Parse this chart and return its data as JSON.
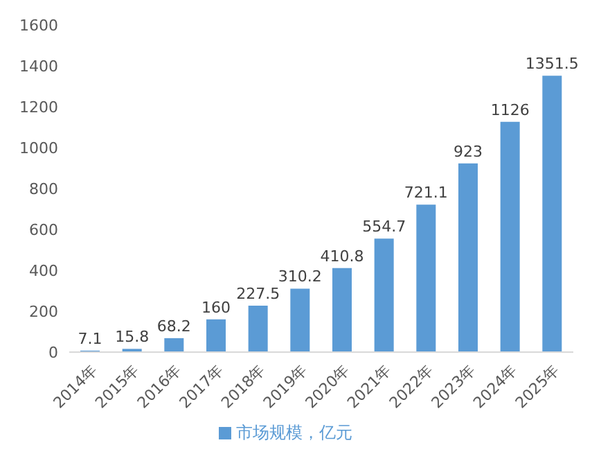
{
  "chart_data": {
    "type": "bar",
    "categories": [
      "2014年",
      "2015年",
      "2016年",
      "2017年",
      "2018年",
      "2019年",
      "2020年",
      "2021年",
      "2022年",
      "2023年",
      "2024年",
      "2025年"
    ],
    "series": [
      {
        "name": "市场规模，亿元",
        "color": "#5b9bd5",
        "values": [
          7.1,
          15.8,
          68.2,
          160,
          227.5,
          310.2,
          410.8,
          554.7,
          721.1,
          923,
          1126,
          1351.5
        ]
      }
    ],
    "ylim": [
      0,
      1600
    ],
    "yticks": [
      0,
      200,
      400,
      600,
      800,
      1000,
      1200,
      1400,
      1600
    ],
    "data_labels": true,
    "legend": "bottom"
  }
}
